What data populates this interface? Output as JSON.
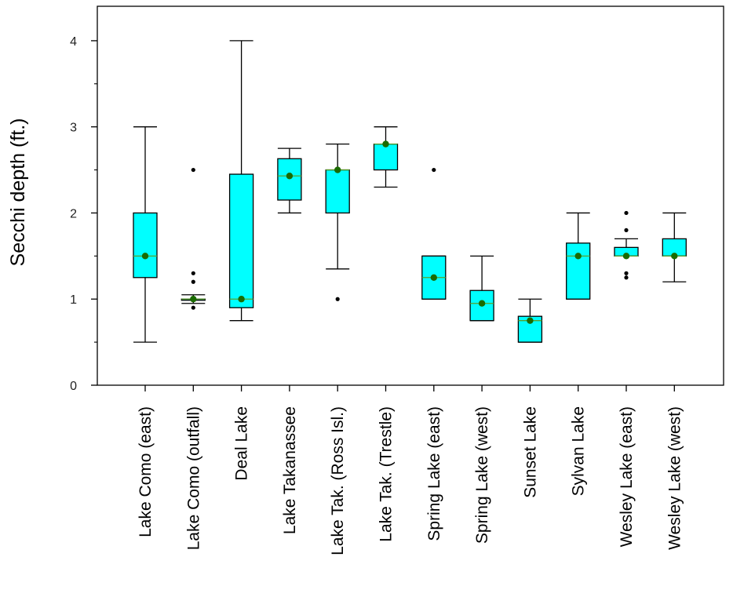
{
  "chart_data": {
    "type": "box",
    "title": "",
    "xlabel": "",
    "ylabel": "Secchi depth (ft.)",
    "ylim": [
      0,
      4.4
    ],
    "yticks": [
      "0",
      "1",
      "2",
      "3",
      "4"
    ],
    "grid": false,
    "colors": {
      "box_fill": "#00ffff",
      "stroke": "#000000",
      "mean_marker": "#1a6b00",
      "median_line": "#5aa02c"
    },
    "categories": [
      "Lake Como (east)",
      "Lake Como (outfall)",
      "Deal Lake",
      "Lake Takanassee",
      "Lake Tak. (Ross Isl.)",
      "Lake Tak. (Trestle)",
      "Spring Lake (east)",
      "Spring Lake (west)",
      "Sunset Lake",
      "Sylvan Lake",
      "Wesley Lake (east)",
      "Wesley Lake (west)"
    ],
    "boxes": [
      {
        "whisker_low": 0.5,
        "q1": 1.25,
        "median": 1.5,
        "q3": 2.0,
        "whisker_high": 3.0,
        "mean": 1.5,
        "outliers": []
      },
      {
        "whisker_low": 0.95,
        "q1": 1.0,
        "median": 1.0,
        "q3": 1.0,
        "whisker_high": 1.05,
        "mean": 1.0,
        "outliers": [
          0.9,
          1.2,
          1.3,
          2.5
        ]
      },
      {
        "whisker_low": 0.75,
        "q1": 0.9,
        "median": 1.0,
        "q3": 2.45,
        "whisker_high": 4.0,
        "mean": 1.0,
        "outliers": []
      },
      {
        "whisker_low": 2.0,
        "q1": 2.15,
        "median": 2.43,
        "q3": 2.63,
        "whisker_high": 2.75,
        "mean": 2.43,
        "outliers": []
      },
      {
        "whisker_low": 1.35,
        "q1": 2.0,
        "median": 2.5,
        "q3": 2.5,
        "whisker_high": 2.8,
        "mean": 2.5,
        "outliers": [
          1.0
        ]
      },
      {
        "whisker_low": 2.3,
        "q1": 2.5,
        "median": 2.8,
        "q3": 2.8,
        "whisker_high": 3.0,
        "mean": 2.8,
        "outliers": []
      },
      {
        "whisker_low": 1.0,
        "q1": 1.0,
        "median": 1.25,
        "q3": 1.5,
        "whisker_high": 1.5,
        "mean": 1.25,
        "outliers": [
          2.5
        ]
      },
      {
        "whisker_low": 0.75,
        "q1": 0.75,
        "median": 0.95,
        "q3": 1.1,
        "whisker_high": 1.5,
        "mean": 0.95,
        "outliers": []
      },
      {
        "whisker_low": 0.5,
        "q1": 0.5,
        "median": 0.75,
        "q3": 0.8,
        "whisker_high": 1.0,
        "mean": 0.75,
        "outliers": []
      },
      {
        "whisker_low": 1.0,
        "q1": 1.0,
        "median": 1.5,
        "q3": 1.65,
        "whisker_high": 2.0,
        "mean": 1.5,
        "outliers": []
      },
      {
        "whisker_low": 1.5,
        "q1": 1.5,
        "median": 1.5,
        "q3": 1.6,
        "whisker_high": 1.7,
        "mean": 1.5,
        "outliers": [
          1.25,
          1.3,
          1.8,
          2.0
        ]
      },
      {
        "whisker_low": 1.2,
        "q1": 1.5,
        "median": 1.5,
        "q3": 1.7,
        "whisker_high": 2.0,
        "mean": 1.5,
        "outliers": []
      }
    ]
  }
}
